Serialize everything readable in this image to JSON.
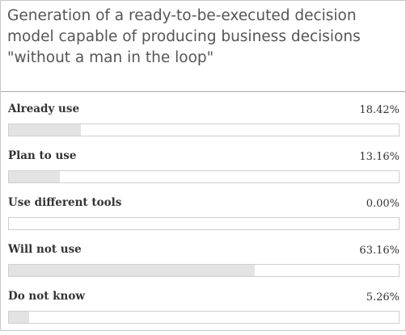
{
  "chart_data": {
    "type": "bar",
    "title": "Generation of a ready-to-be-executed decision model capable of producing business decisions \"without a man in the loop\"",
    "categories": [
      "Already use",
      "Plan to use",
      "Use different tools",
      "Will not use",
      "Do not know"
    ],
    "values": [
      18.42,
      13.16,
      0.0,
      63.16,
      5.26
    ],
    "value_labels": [
      "18.42%",
      "13.16%",
      "0.00%",
      "63.16%",
      "5.26%"
    ],
    "xlim": [
      0,
      100
    ],
    "grid": false,
    "legend": "none",
    "colors": {
      "fill": "#e3e3e3",
      "track_border": "#cfcfcf",
      "divider": "#a9a9a9"
    }
  }
}
